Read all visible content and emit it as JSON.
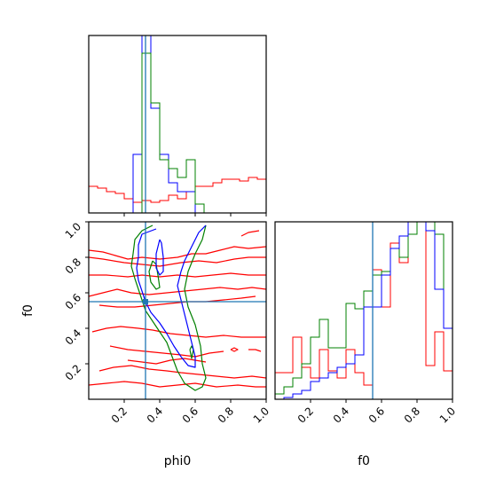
{
  "chart_data": {
    "type": "corner",
    "parameters": [
      "phi0",
      "f0"
    ],
    "truth": {
      "phi0": 0.32,
      "f0": 0.55
    },
    "truth_color": "#1f77b4",
    "series_colors": {
      "red": "#ff0000",
      "green": "#008000",
      "blue": "#0000ff"
    },
    "axes": {
      "phi0": {
        "range": [
          0.0,
          1.0
        ],
        "ticks": [
          "0.2",
          "0.4",
          "0.6",
          "0.8",
          "1.0"
        ],
        "tick_values": [
          0.2,
          0.4,
          0.6,
          0.8,
          1.0
        ]
      },
      "f0": {
        "range": [
          0.0,
          1.0
        ],
        "ticks": [
          "0.2",
          "0.4",
          "0.6",
          "0.8",
          "1.0"
        ],
        "tick_values": [
          0.2,
          0.4,
          0.6,
          0.8,
          1.0
        ]
      }
    },
    "hist_phi0": {
      "bin_edges": [
        0.0,
        0.05,
        0.1,
        0.15,
        0.2,
        0.25,
        0.3,
        0.35,
        0.4,
        0.45,
        0.5,
        0.55,
        0.6,
        0.65,
        0.7,
        0.75,
        0.8,
        0.85,
        0.9,
        0.95,
        1.0
      ],
      "series": [
        {
          "color": "red",
          "values": [
            0.15,
            0.14,
            0.12,
            0.11,
            0.08,
            0.06,
            0.07,
            0.06,
            0.07,
            0.1,
            0.08,
            0.12,
            0.15,
            0.15,
            0.17,
            0.19,
            0.19,
            0.18,
            0.2,
            0.19
          ]
        },
        {
          "color": "blue",
          "values": [
            0,
            0,
            0,
            0,
            0,
            0.33,
            1.05,
            0.59,
            0.33,
            0.17,
            0.12,
            0.12,
            0.0,
            0,
            0,
            0,
            0,
            0,
            0,
            0
          ]
        },
        {
          "color": "green",
          "values": [
            0,
            0,
            0,
            0,
            0,
            0,
            0.9,
            0.62,
            0.3,
            0.25,
            0.2,
            0.3,
            0.05,
            0,
            0,
            0,
            0,
            0,
            0,
            0
          ]
        }
      ]
    },
    "hist_f0": {
      "bin_edges": [
        0.0,
        0.05,
        0.1,
        0.15,
        0.2,
        0.25,
        0.3,
        0.35,
        0.4,
        0.45,
        0.5,
        0.55,
        0.6,
        0.65,
        0.7,
        0.75,
        0.8,
        0.85,
        0.9,
        0.95,
        1.0
      ],
      "series": [
        {
          "color": "red",
          "values": [
            0.15,
            0.15,
            0.35,
            0.18,
            0.12,
            0.28,
            0.16,
            0.12,
            0.28,
            0.15,
            0.08,
            0.73,
            0.52,
            0.88,
            0.77,
            1.05,
            1.05,
            0.19,
            0.38,
            0.16
          ]
        },
        {
          "color": "green",
          "values": [
            0.03,
            0.07,
            0.12,
            0.2,
            0.35,
            0.45,
            0.29,
            0.29,
            0.54,
            0.51,
            0.61,
            0.7,
            0.72,
            0.85,
            0.8,
            0.93,
            1.05,
            1.05,
            0.93,
            0.4
          ]
        },
        {
          "color": "blue",
          "values": [
            0.0,
            0.01,
            0.03,
            0.05,
            0.1,
            0.12,
            0.15,
            0.18,
            0.2,
            0.25,
            0.52,
            0.52,
            0.7,
            0.85,
            0.92,
            1.05,
            1.05,
            0.95,
            0.62,
            0.4
          ]
        }
      ]
    },
    "contours_2d": {
      "x_param": "phi0",
      "y_param": "f0",
      "series": [
        {
          "color": "red",
          "lines": [
            [
              [
                0.0,
                0.84
              ],
              [
                0.08,
                0.83
              ],
              [
                0.15,
                0.81
              ],
              [
                0.22,
                0.79
              ],
              [
                0.3,
                0.8
              ],
              [
                0.4,
                0.79
              ],
              [
                0.5,
                0.8
              ],
              [
                0.58,
                0.82
              ],
              [
                0.66,
                0.82
              ],
              [
                0.74,
                0.84
              ],
              [
                0.82,
                0.86
              ],
              [
                0.9,
                0.85
              ],
              [
                1.0,
                0.86
              ]
            ],
            [
              [
                0.0,
                0.8
              ],
              [
                0.08,
                0.79
              ],
              [
                0.2,
                0.77
              ],
              [
                0.3,
                0.76
              ],
              [
                0.4,
                0.75
              ],
              [
                0.52,
                0.77
              ],
              [
                0.62,
                0.78
              ],
              [
                0.72,
                0.77
              ],
              [
                0.82,
                0.79
              ],
              [
                0.9,
                0.8
              ],
              [
                1.0,
                0.8
              ]
            ],
            [
              [
                0.0,
                0.7
              ],
              [
                0.1,
                0.7
              ],
              [
                0.22,
                0.69
              ],
              [
                0.3,
                0.7
              ],
              [
                0.4,
                0.69
              ],
              [
                0.5,
                0.7
              ],
              [
                0.6,
                0.69
              ],
              [
                0.7,
                0.7
              ],
              [
                0.8,
                0.71
              ],
              [
                0.9,
                0.7
              ],
              [
                1.0,
                0.7
              ]
            ],
            [
              [
                0.0,
                0.58
              ],
              [
                0.08,
                0.6
              ],
              [
                0.16,
                0.62
              ],
              [
                0.24,
                0.6
              ],
              [
                0.34,
                0.59
              ],
              [
                0.44,
                0.6
              ],
              [
                0.54,
                0.61
              ],
              [
                0.64,
                0.62
              ],
              [
                0.74,
                0.63
              ],
              [
                0.84,
                0.62
              ],
              [
                0.92,
                0.63
              ],
              [
                1.0,
                0.62
              ]
            ],
            [
              [
                0.06,
                0.53
              ],
              [
                0.16,
                0.52
              ],
              [
                0.26,
                0.52
              ],
              [
                0.36,
                0.53
              ],
              [
                0.46,
                0.54
              ],
              [
                0.56,
                0.55
              ],
              [
                0.66,
                0.55
              ],
              [
                0.76,
                0.56
              ],
              [
                0.86,
                0.57
              ],
              [
                0.94,
                0.58
              ]
            ],
            [
              [
                0.02,
                0.38
              ],
              [
                0.1,
                0.4
              ],
              [
                0.18,
                0.41
              ],
              [
                0.28,
                0.4
              ],
              [
                0.36,
                0.39
              ],
              [
                0.46,
                0.37
              ],
              [
                0.56,
                0.36
              ],
              [
                0.66,
                0.35
              ],
              [
                0.76,
                0.36
              ],
              [
                0.86,
                0.35
              ],
              [
                1.0,
                0.35
              ]
            ],
            [
              [
                0.12,
                0.3
              ],
              [
                0.22,
                0.28
              ],
              [
                0.32,
                0.27
              ],
              [
                0.42,
                0.26
              ],
              [
                0.52,
                0.25
              ],
              [
                0.6,
                0.24
              ],
              [
                0.68,
                0.26
              ],
              [
                0.76,
                0.27
              ]
            ],
            [
              [
                0.22,
                0.22
              ],
              [
                0.3,
                0.21
              ],
              [
                0.38,
                0.2
              ],
              [
                0.46,
                0.22
              ],
              [
                0.54,
                0.23
              ],
              [
                0.6,
                0.22
              ],
              [
                0.66,
                0.21
              ]
            ],
            [
              [
                0.06,
                0.16
              ],
              [
                0.14,
                0.18
              ],
              [
                0.24,
                0.19
              ],
              [
                0.34,
                0.17
              ],
              [
                0.44,
                0.16
              ],
              [
                0.52,
                0.15
              ],
              [
                0.62,
                0.14
              ],
              [
                0.72,
                0.13
              ],
              [
                0.82,
                0.12
              ],
              [
                0.92,
                0.13
              ],
              [
                1.0,
                0.12
              ]
            ],
            [
              [
                0.0,
                0.08
              ],
              [
                0.1,
                0.09
              ],
              [
                0.2,
                0.1
              ],
              [
                0.3,
                0.09
              ],
              [
                0.4,
                0.07
              ],
              [
                0.5,
                0.08
              ],
              [
                0.6,
                0.09
              ],
              [
                0.72,
                0.07
              ],
              [
                0.84,
                0.08
              ],
              [
                0.94,
                0.07
              ],
              [
                1.0,
                0.07
              ]
            ],
            [
              [
                0.8,
                0.28
              ],
              [
                0.82,
                0.27
              ],
              [
                0.84,
                0.28
              ],
              [
                0.82,
                0.29
              ],
              [
                0.8,
                0.28
              ]
            ],
            [
              [
                0.9,
                0.28
              ],
              [
                0.94,
                0.28
              ],
              [
                0.97,
                0.27
              ]
            ],
            [
              [
                0.86,
                0.92
              ],
              [
                0.9,
                0.94
              ],
              [
                0.96,
                0.95
              ]
            ]
          ]
        },
        {
          "color": "green",
          "lines": [
            [
              [
                0.36,
                0.98
              ],
              [
                0.3,
                0.95
              ],
              [
                0.26,
                0.9
              ],
              [
                0.25,
                0.82
              ],
              [
                0.24,
                0.75
              ],
              [
                0.26,
                0.68
              ],
              [
                0.28,
                0.62
              ],
              [
                0.3,
                0.56
              ],
              [
                0.32,
                0.5
              ],
              [
                0.36,
                0.44
              ],
              [
                0.4,
                0.38
              ],
              [
                0.44,
                0.32
              ],
              [
                0.47,
                0.24
              ],
              [
                0.5,
                0.16
              ],
              [
                0.54,
                0.09
              ],
              [
                0.6,
                0.05
              ],
              [
                0.64,
                0.07
              ],
              [
                0.66,
                0.12
              ],
              [
                0.64,
                0.2
              ],
              [
                0.63,
                0.3
              ],
              [
                0.6,
                0.42
              ],
              [
                0.56,
                0.52
              ],
              [
                0.54,
                0.62
              ],
              [
                0.56,
                0.72
              ],
              [
                0.6,
                0.82
              ],
              [
                0.64,
                0.9
              ],
              [
                0.66,
                0.98
              ]
            ],
            [
              [
                0.36,
                0.78
              ],
              [
                0.34,
                0.72
              ],
              [
                0.35,
                0.66
              ],
              [
                0.38,
                0.62
              ],
              [
                0.4,
                0.63
              ],
              [
                0.39,
                0.7
              ],
              [
                0.38,
                0.76
              ],
              [
                0.36,
                0.78
              ]
            ],
            [
              [
                0.57,
                0.28
              ],
              [
                0.58,
                0.23
              ],
              [
                0.59,
                0.28
              ],
              [
                0.58,
                0.3
              ],
              [
                0.57,
                0.28
              ]
            ]
          ]
        },
        {
          "color": "blue",
          "lines": [
            [
              [
                0.38,
                0.96
              ],
              [
                0.3,
                0.93
              ],
              [
                0.28,
                0.87
              ],
              [
                0.28,
                0.8
              ],
              [
                0.27,
                0.74
              ],
              [
                0.28,
                0.67
              ],
              [
                0.3,
                0.61
              ],
              [
                0.32,
                0.55
              ],
              [
                0.35,
                0.49
              ],
              [
                0.4,
                0.43
              ],
              [
                0.44,
                0.37
              ],
              [
                0.48,
                0.3
              ],
              [
                0.52,
                0.24
              ],
              [
                0.56,
                0.19
              ],
              [
                0.6,
                0.18
              ],
              [
                0.6,
                0.24
              ],
              [
                0.58,
                0.32
              ],
              [
                0.56,
                0.4
              ],
              [
                0.54,
                0.48
              ],
              [
                0.52,
                0.56
              ],
              [
                0.5,
                0.64
              ],
              [
                0.52,
                0.72
              ],
              [
                0.54,
                0.78
              ],
              [
                0.58,
                0.86
              ],
              [
                0.62,
                0.94
              ],
              [
                0.66,
                0.98
              ]
            ],
            [
              [
                0.4,
                0.9
              ],
              [
                0.38,
                0.82
              ],
              [
                0.38,
                0.74
              ],
              [
                0.4,
                0.7
              ],
              [
                0.42,
                0.72
              ],
              [
                0.42,
                0.8
              ],
              [
                0.41,
                0.88
              ],
              [
                0.4,
                0.9
              ]
            ]
          ]
        }
      ]
    },
    "xlabel_left": "phi0",
    "xlabel_right": "f0",
    "ylabel_left": "f0"
  }
}
